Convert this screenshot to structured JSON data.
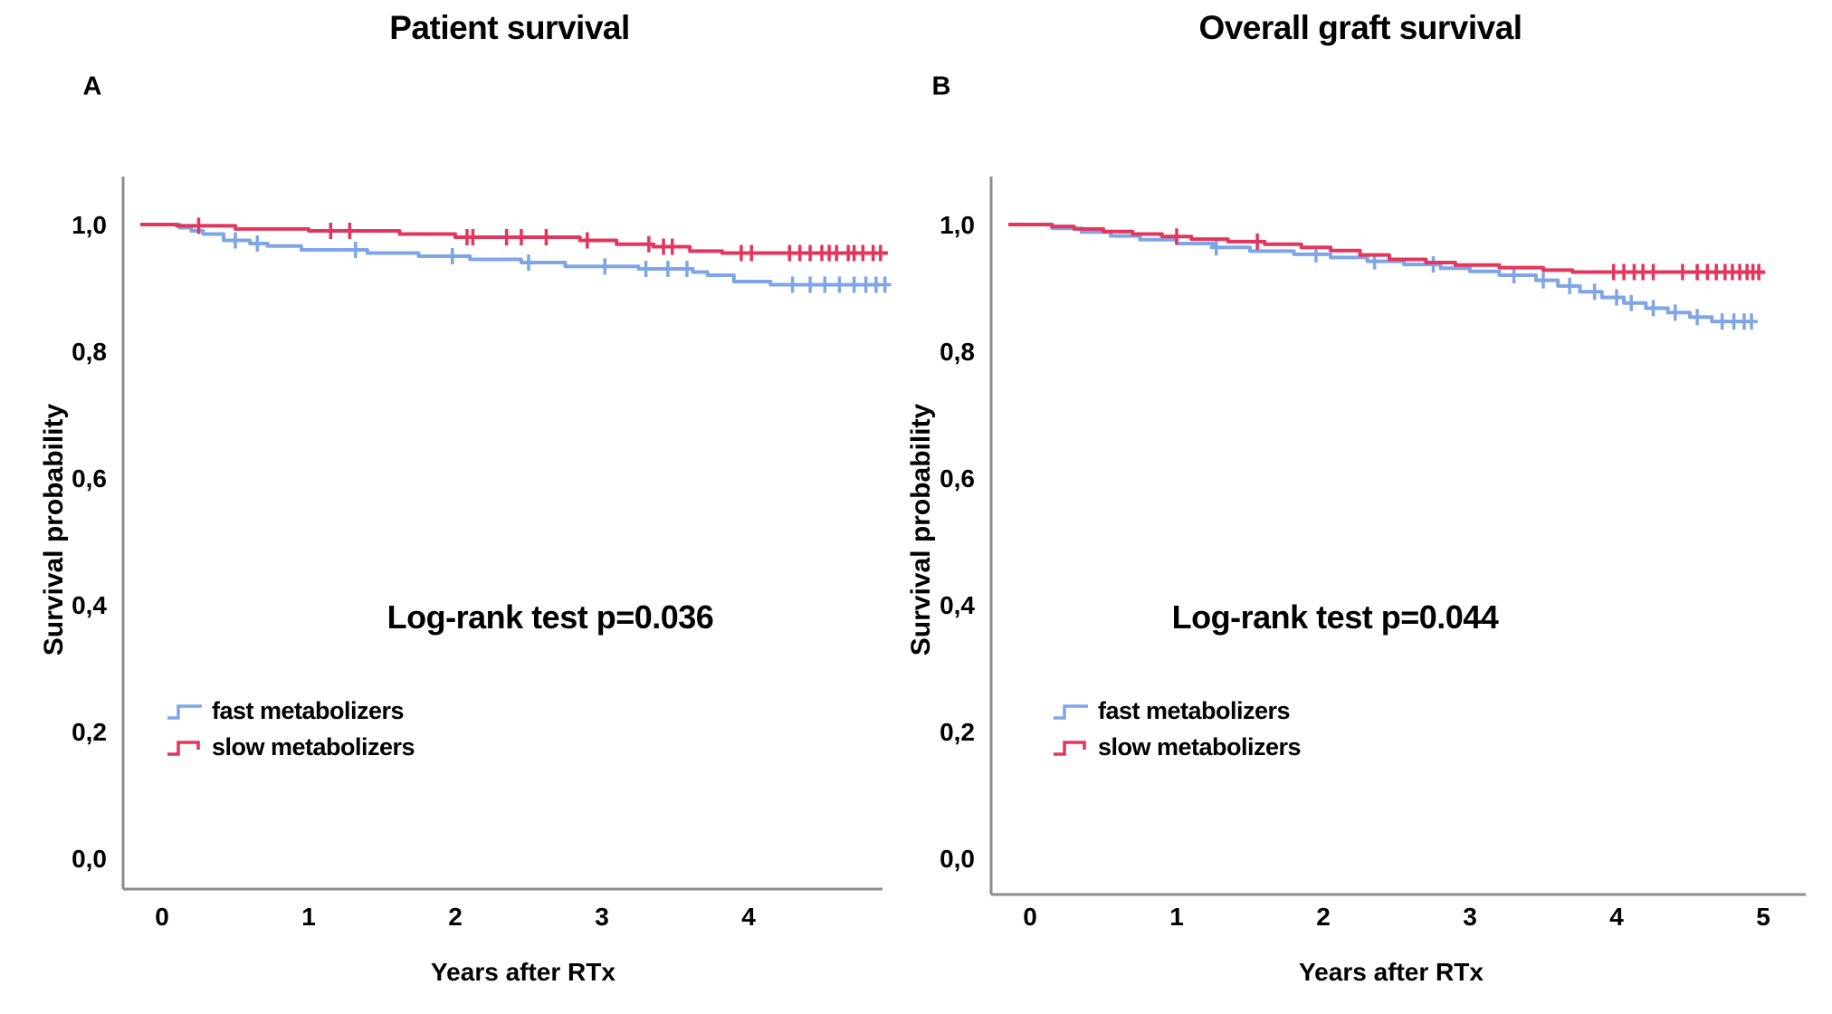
{
  "figure": {
    "colors": {
      "fast": "#7EA6E6",
      "slow": "#E2365E",
      "axis": "#8C8C8C",
      "text": "#000000"
    },
    "panels": [
      {
        "letter": "A",
        "title": "Patient survival",
        "ylabel": "Survival probability",
        "xlabel": "Years after RTx",
        "p_text": "Log-rank test p=0.036",
        "legend": [
          {
            "label": "fast metabolizers",
            "series": "fast"
          },
          {
            "label": "slow metabolizers",
            "series": "slow"
          }
        ],
        "y_tick_labels": [
          "1,0",
          "0,8",
          "0,6",
          "0,4",
          "0,2",
          "0,0"
        ],
        "x_tick_labels": [
          "0",
          "1",
          "2",
          "3",
          "4"
        ]
      },
      {
        "letter": "B",
        "title": "Overall graft survival",
        "ylabel": "Survival probability",
        "xlabel": "Years after RTx",
        "p_text": "Log-rank test p=0.044",
        "legend": [
          {
            "label": "fast metabolizers",
            "series": "fast"
          },
          {
            "label": "slow metabolizers",
            "series": "slow"
          }
        ],
        "y_tick_labels": [
          "1,0",
          "0,8",
          "0,6",
          "0,4",
          "0,2",
          "0,0"
        ],
        "x_tick_labels": [
          "0",
          "1",
          "2",
          "3",
          "4",
          "5"
        ]
      }
    ]
  },
  "chart_data": [
    {
      "type": "line",
      "subtype": "kaplan-meier-step",
      "title": "Patient survival",
      "xlabel": "Years after RTx",
      "ylabel": "Survival probability",
      "annotation": "Log-rank test p=0.036",
      "legend_position": "lower-left",
      "xlim": [
        0,
        4.95
      ],
      "ylim": [
        0.0,
        1.05
      ],
      "x_ticks": [
        0,
        1,
        2,
        3,
        4
      ],
      "y_ticks": [
        1.0,
        0.8,
        0.6,
        0.4,
        0.2,
        0.0
      ],
      "grid": false,
      "series": [
        {
          "name": "fast metabolizers",
          "color": "#7EA6E6",
          "steps": [
            [
              0,
              1.0
            ],
            [
              0.12,
              0.995
            ],
            [
              0.2,
              0.99
            ],
            [
              0.28,
              0.985
            ],
            [
              0.42,
              0.975
            ],
            [
              0.6,
              0.97
            ],
            [
              0.72,
              0.966
            ],
            [
              0.95,
              0.96
            ],
            [
              1.4,
              0.955
            ],
            [
              1.75,
              0.95
            ],
            [
              2.1,
              0.945
            ],
            [
              2.45,
              0.94
            ],
            [
              2.75,
              0.934
            ],
            [
              3.25,
              0.93
            ],
            [
              3.62,
              0.925
            ],
            [
              3.72,
              0.92
            ],
            [
              3.9,
              0.91
            ],
            [
              4.15,
              0.905
            ],
            [
              4.9,
              0.905
            ]
          ],
          "censor_times": [
            0.5,
            0.65,
            1.32,
            1.98,
            2.5,
            3.02,
            3.3,
            3.45,
            3.58,
            4.3,
            4.42,
            4.52,
            4.62,
            4.72,
            4.8,
            4.87,
            4.93
          ],
          "final_value": 0.905
        },
        {
          "name": "slow metabolizers",
          "color": "#E2365E",
          "steps": [
            [
              0,
              1.0
            ],
            [
              0.1,
              0.998
            ],
            [
              0.5,
              0.993
            ],
            [
              1.0,
              0.99
            ],
            [
              1.62,
              0.985
            ],
            [
              2.0,
              0.98
            ],
            [
              2.85,
              0.975
            ],
            [
              3.1,
              0.969
            ],
            [
              3.35,
              0.965
            ],
            [
              3.6,
              0.958
            ],
            [
              3.82,
              0.955
            ],
            [
              4.95,
              0.955
            ]
          ],
          "censor_times": [
            0.25,
            1.15,
            1.28,
            2.08,
            2.12,
            2.35,
            2.45,
            2.62,
            2.9,
            3.32,
            3.42,
            3.48,
            3.95,
            4.02,
            4.28,
            4.35,
            4.42,
            4.5,
            4.55,
            4.6,
            4.68,
            4.72,
            4.78,
            4.85,
            4.9
          ],
          "final_value": 0.955
        }
      ]
    },
    {
      "type": "line",
      "subtype": "kaplan-meier-step",
      "title": "Overall graft survival",
      "xlabel": "Years after RTx",
      "ylabel": "Survival probability",
      "annotation": "Log-rank test p=0.044",
      "legend_position": "lower-left",
      "xlim": [
        0,
        5.3
      ],
      "ylim": [
        0.0,
        1.05
      ],
      "x_ticks": [
        0,
        1,
        2,
        3,
        4,
        5
      ],
      "y_ticks": [
        1.0,
        0.8,
        0.6,
        0.4,
        0.2,
        0.0
      ],
      "grid": false,
      "series": [
        {
          "name": "fast metabolizers",
          "color": "#7EA6E6",
          "steps": [
            [
              0,
              1.0
            ],
            [
              0.15,
              0.994
            ],
            [
              0.35,
              0.988
            ],
            [
              0.55,
              0.982
            ],
            [
              0.75,
              0.976
            ],
            [
              1.0,
              0.97
            ],
            [
              1.25,
              0.964
            ],
            [
              1.5,
              0.958
            ],
            [
              1.8,
              0.953
            ],
            [
              2.05,
              0.948
            ],
            [
              2.3,
              0.942
            ],
            [
              2.55,
              0.937
            ],
            [
              2.8,
              0.931
            ],
            [
              3.0,
              0.926
            ],
            [
              3.2,
              0.92
            ],
            [
              3.45,
              0.912
            ],
            [
              3.6,
              0.903
            ],
            [
              3.75,
              0.894
            ],
            [
              3.9,
              0.885
            ],
            [
              4.05,
              0.876
            ],
            [
              4.2,
              0.868
            ],
            [
              4.35,
              0.861
            ],
            [
              4.5,
              0.854
            ],
            [
              4.65,
              0.847
            ],
            [
              4.93,
              0.847
            ]
          ],
          "censor_times": [
            1.27,
            1.95,
            2.35,
            2.75,
            3.3,
            3.5,
            3.68,
            3.85,
            4.0,
            4.1,
            4.25,
            4.4,
            4.55,
            4.72,
            4.8,
            4.87,
            4.92
          ],
          "final_value": 0.847
        },
        {
          "name": "slow metabolizers",
          "color": "#E2365E",
          "steps": [
            [
              0,
              1.0
            ],
            [
              0.15,
              0.997
            ],
            [
              0.3,
              0.993
            ],
            [
              0.5,
              0.989
            ],
            [
              0.7,
              0.985
            ],
            [
              0.9,
              0.981
            ],
            [
              1.1,
              0.977
            ],
            [
              1.35,
              0.973
            ],
            [
              1.6,
              0.969
            ],
            [
              1.85,
              0.964
            ],
            [
              2.05,
              0.959
            ],
            [
              2.25,
              0.952
            ],
            [
              2.45,
              0.945
            ],
            [
              2.7,
              0.94
            ],
            [
              2.9,
              0.936
            ],
            [
              3.2,
              0.932
            ],
            [
              3.5,
              0.928
            ],
            [
              3.7,
              0.925
            ],
            [
              5.0,
              0.922
            ]
          ],
          "censor_times": [
            1.0,
            1.55,
            3.98,
            4.05,
            4.12,
            4.18,
            4.25,
            4.45,
            4.55,
            4.62,
            4.68,
            4.74,
            4.79,
            4.84,
            4.89,
            4.93,
            4.97
          ],
          "final_value": 0.922
        }
      ]
    }
  ]
}
